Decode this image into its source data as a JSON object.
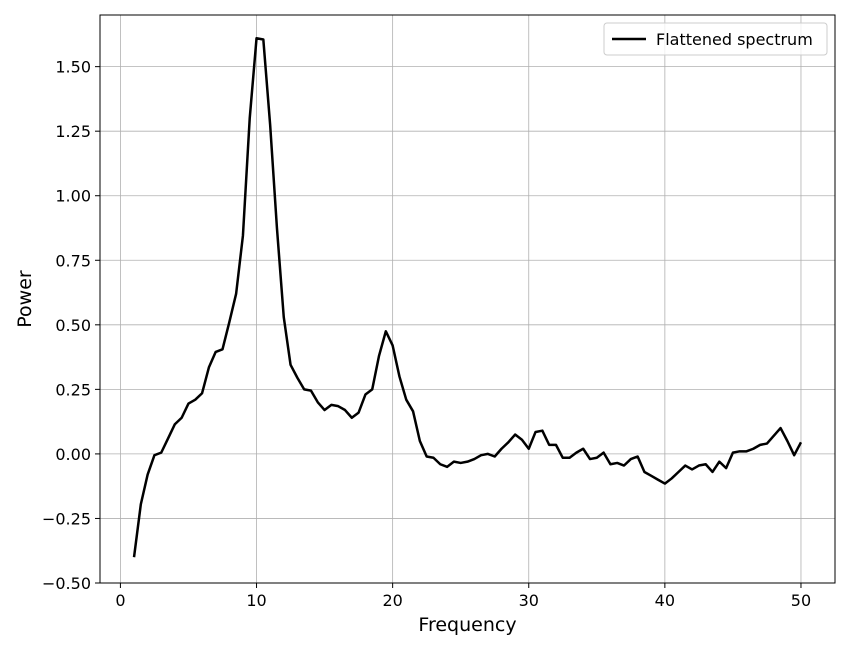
{
  "chart_data": {
    "type": "line",
    "title": "",
    "xlabel": "Frequency",
    "ylabel": "Power",
    "xlim": [
      -1.5,
      52.5
    ],
    "ylim": [
      -0.5,
      1.7
    ],
    "grid": true,
    "legend_position": "top-right",
    "x_ticks": [
      {
        "value": 0,
        "label": "0"
      },
      {
        "value": 10,
        "label": "10"
      },
      {
        "value": 20,
        "label": "20"
      },
      {
        "value": 30,
        "label": "30"
      },
      {
        "value": 40,
        "label": "40"
      },
      {
        "value": 50,
        "label": "50"
      }
    ],
    "y_ticks": [
      {
        "value": -0.5,
        "label": "−0.50"
      },
      {
        "value": -0.25,
        "label": "−0.25"
      },
      {
        "value": 0.0,
        "label": "0.00"
      },
      {
        "value": 0.25,
        "label": "0.25"
      },
      {
        "value": 0.5,
        "label": "0.50"
      },
      {
        "value": 0.75,
        "label": "0.75"
      },
      {
        "value": 1.0,
        "label": "1.00"
      },
      {
        "value": 1.25,
        "label": "1.25"
      },
      {
        "value": 1.5,
        "label": "1.50"
      }
    ],
    "series": [
      {
        "name": "Flattened spectrum",
        "color": "#000000",
        "x": [
          1.0,
          1.5,
          2.0,
          2.5,
          3.0,
          3.5,
          4.0,
          4.5,
          5.0,
          5.5,
          6.0,
          6.5,
          7.0,
          7.5,
          8.0,
          8.5,
          9.0,
          9.5,
          10.0,
          10.5,
          11.0,
          11.5,
          12.0,
          12.5,
          13.0,
          13.5,
          14.0,
          14.5,
          15.0,
          15.5,
          16.0,
          16.5,
          17.0,
          17.5,
          18.0,
          18.5,
          19.0,
          19.5,
          20.0,
          20.5,
          21.0,
          21.5,
          22.0,
          22.5,
          23.0,
          23.5,
          24.0,
          24.5,
          25.0,
          25.5,
          26.0,
          26.5,
          27.0,
          27.5,
          28.0,
          28.5,
          29.0,
          29.5,
          30.0,
          30.5,
          31.0,
          31.5,
          32.0,
          32.5,
          33.0,
          33.5,
          34.0,
          34.5,
          35.0,
          35.5,
          36.0,
          36.5,
          37.0,
          37.5,
          38.0,
          38.5,
          39.0,
          39.5,
          40.0,
          40.5,
          41.0,
          41.5,
          42.0,
          42.5,
          43.0,
          43.5,
          44.0,
          44.5,
          45.0,
          45.5,
          46.0,
          46.5,
          47.0,
          47.5,
          48.0,
          48.5,
          49.0,
          49.5,
          50.0
        ],
        "y": [
          -0.4,
          -0.195,
          -0.08,
          -0.005,
          0.005,
          0.06,
          0.115,
          0.14,
          0.195,
          0.21,
          0.235,
          0.335,
          0.395,
          0.405,
          0.51,
          0.62,
          0.845,
          1.3,
          1.61,
          1.605,
          1.275,
          0.875,
          0.53,
          0.345,
          0.295,
          0.25,
          0.245,
          0.2,
          0.17,
          0.19,
          0.185,
          0.17,
          0.14,
          0.16,
          0.23,
          0.25,
          0.38,
          0.475,
          0.42,
          0.3,
          0.21,
          0.165,
          0.05,
          -0.01,
          -0.015,
          -0.04,
          -0.05,
          -0.03,
          -0.035,
          -0.03,
          -0.02,
          -0.005,
          0.0,
          -0.01,
          0.02,
          0.045,
          0.075,
          0.055,
          0.02,
          0.085,
          0.09,
          0.035,
          0.035,
          -0.015,
          -0.015,
          0.005,
          0.02,
          -0.02,
          -0.015,
          0.005,
          -0.04,
          -0.035,
          -0.045,
          -0.02,
          -0.01,
          -0.07,
          -0.085,
          -0.1,
          -0.115,
          -0.095,
          -0.07,
          -0.045,
          -0.06,
          -0.045,
          -0.04,
          -0.07,
          -0.03,
          -0.055,
          0.005,
          0.01,
          0.01,
          0.02,
          0.035,
          0.04,
          0.07,
          0.1,
          0.05,
          -0.005,
          0.045
        ]
      }
    ]
  }
}
